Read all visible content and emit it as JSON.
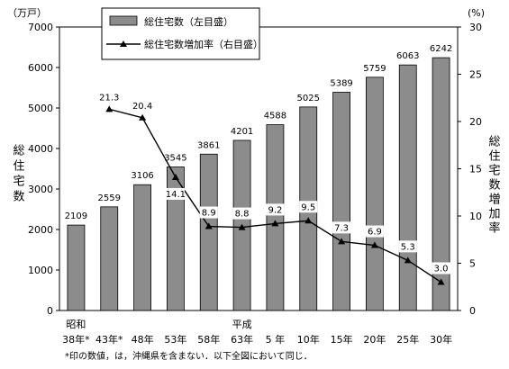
{
  "chart_data": {
    "type": "bar+line",
    "unit_left": "（万戸）",
    "unit_right": "(%)",
    "ylabel_left": "総住宅数",
    "ylabel_right": "総住宅数増加率",
    "ylim_left": [
      0,
      7000
    ],
    "yticks_left": [
      "0",
      "1000",
      "2000",
      "3000",
      "4000",
      "5000",
      "6000",
      "7000"
    ],
    "ylim_right": [
      0,
      30
    ],
    "yticks_right": [
      "0",
      "5",
      "10",
      "15",
      "20",
      "25",
      "30"
    ],
    "era_labels": [
      {
        "label": "昭和",
        "category_index": 0
      },
      {
        "label": "平成",
        "category_index": 5
      }
    ],
    "categories": [
      "38年*",
      "43年*",
      "48年",
      "53年",
      "58年",
      "63年",
      "5 年",
      "10年",
      "15年",
      "20年",
      "25年",
      "30年"
    ],
    "bars": {
      "name": "総住宅数（左目盛）",
      "values": [
        2109,
        2559,
        3106,
        3545,
        3861,
        4201,
        4588,
        5025,
        5389,
        5759,
        6063,
        6242
      ],
      "labels": [
        "2109",
        "2559",
        "3106",
        "3545",
        "3861",
        "4201",
        "4588",
        "5025",
        "5389",
        "5759",
        "6063",
        "6242"
      ]
    },
    "line": {
      "name": "総住宅数増加率（右目盛）",
      "values": [
        null,
        21.3,
        20.4,
        14.1,
        8.9,
        8.8,
        9.2,
        9.5,
        7.3,
        6.9,
        5.3,
        3.0
      ],
      "labels": [
        "",
        "21.3",
        "20.4",
        "14.1",
        "8.9",
        "8.8",
        "9.2",
        "9.5",
        "7.3",
        "6.9",
        "5.3",
        "3.0"
      ]
    },
    "colors": {
      "bar": "#8c8c8c",
      "line": "#000000"
    },
    "legend_position": "top-center",
    "note": "*印の数値，は，沖縄県を含まない．以下全図において同じ．"
  }
}
